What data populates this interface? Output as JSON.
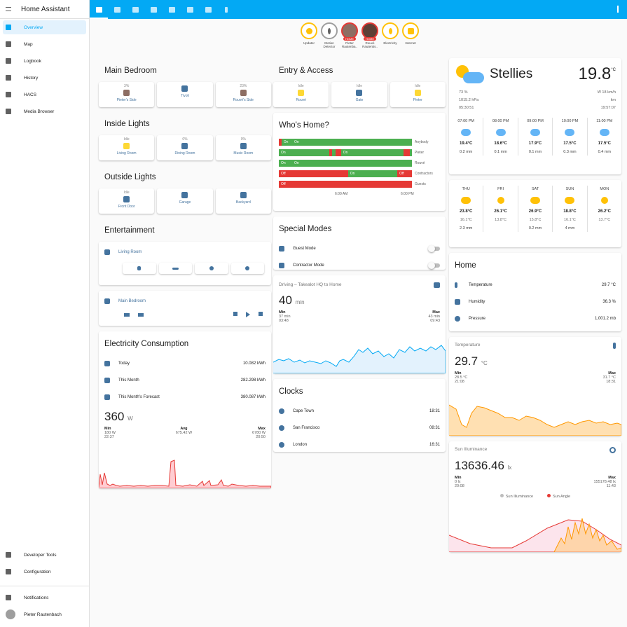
{
  "app_title": "Home Assistant",
  "sidebar": {
    "items": [
      {
        "label": "Overview"
      },
      {
        "label": "Map"
      },
      {
        "label": "Logbook"
      },
      {
        "label": "History"
      },
      {
        "label": "HACS"
      },
      {
        "label": "Media Browser"
      }
    ],
    "bottom": [
      {
        "label": "Developer Tools"
      },
      {
        "label": "Configuration"
      },
      {
        "label": "Notifications"
      },
      {
        "label": "Pieter Rautenbach"
      }
    ]
  },
  "badges": [
    {
      "label": "Updater"
    },
    {
      "label": "Motion Detector"
    },
    {
      "label": "Pieter Rautenba..",
      "state": "HOME"
    },
    {
      "label": "Rouvé Rautenbs..",
      "state": "HOME"
    },
    {
      "label": "Electricity"
    },
    {
      "label": "Internet"
    }
  ],
  "main_bedroom": {
    "title": "Main Bedroom",
    "buttons": [
      {
        "state": "3%",
        "name": "Pieter's Side"
      },
      {
        "state": "",
        "name": "Tivoli"
      },
      {
        "state": "23%",
        "name": "Rouvé's Side"
      }
    ]
  },
  "inside_lights": {
    "title": "Inside Lights",
    "buttons": [
      {
        "state": "Idle",
        "name": "Living Room"
      },
      {
        "state": "0%",
        "name": "Dining Room"
      },
      {
        "state": "0%",
        "name": "Music Room"
      }
    ]
  },
  "outside_lights": {
    "title": "Outside Lights",
    "buttons": [
      {
        "state": "Idle",
        "name": "Front Door"
      },
      {
        "state": "",
        "name": "Garage"
      },
      {
        "state": "",
        "name": "Backyard"
      }
    ]
  },
  "entertainment": {
    "title": "Entertainment",
    "living_room": "Living Room",
    "main_bedroom": "Main Bedroom"
  },
  "electricity": {
    "title": "Electricity Consumption",
    "rows": [
      {
        "label": "Today",
        "value": "10.082 kWh"
      },
      {
        "label": "This Month",
        "value": "282.298 kWh"
      },
      {
        "label": "This Month's Forecast",
        "value": "380.087 kWh"
      }
    ],
    "current": "360",
    "unit": "W",
    "min_label": "Min",
    "min": "180 W",
    "min_time": "22:37",
    "avg_label": "Avg",
    "avg": "675.42 W",
    "max_label": "Max",
    "max": "6780 W",
    "max_time": "20:50"
  },
  "entry": {
    "title": "Entry & Access",
    "buttons": [
      {
        "state": "Idle",
        "name": "Rouvé"
      },
      {
        "state": "Idle",
        "name": "Gate"
      },
      {
        "state": "Idle",
        "name": "Pieter"
      }
    ]
  },
  "whos_home": {
    "title": "Who's Home?",
    "rows": [
      {
        "name": "Anybody",
        "segs": [
          {
            "t": "",
            "w": 2,
            "c": "#e53935"
          },
          {
            "t": "On",
            "w": 8,
            "c": "#4caf50"
          },
          {
            "t": "On",
            "w": 90,
            "c": "#4caf50"
          }
        ]
      },
      {
        "name": "Pieter",
        "segs": [
          {
            "t": "On",
            "w": 38,
            "c": "#4caf50"
          },
          {
            "t": "",
            "w": 2,
            "c": "#e53935"
          },
          {
            "t": "",
            "w": 3,
            "c": "#4caf50"
          },
          {
            "t": "",
            "w": 4,
            "c": "#e53935"
          },
          {
            "t": "On",
            "w": 47,
            "c": "#4caf50"
          },
          {
            "t": "",
            "w": 5,
            "c": "#e53935"
          },
          {
            "t": "",
            "w": 1,
            "c": "#4caf50"
          }
        ]
      },
      {
        "name": "Rouvé",
        "segs": [
          {
            "t": "On",
            "w": 10,
            "c": "#4caf50"
          },
          {
            "t": "On",
            "w": 90,
            "c": "#4caf50"
          }
        ]
      },
      {
        "name": "Contractors",
        "segs": [
          {
            "t": "Off",
            "w": 52,
            "c": "#e53935"
          },
          {
            "t": "On",
            "w": 37,
            "c": "#4caf50"
          },
          {
            "t": "Off",
            "w": 11,
            "c": "#e53935"
          }
        ]
      },
      {
        "name": "Guests",
        "segs": [
          {
            "t": "Off",
            "w": 100,
            "c": "#e53935"
          }
        ]
      }
    ],
    "ticks": [
      "6:00 AM",
      "6:00 PM"
    ]
  },
  "special": {
    "title": "Special Modes",
    "rows": [
      {
        "label": "Guest Mode"
      },
      {
        "label": "Contractor Mode"
      }
    ]
  },
  "driving": {
    "title": "Driving – Takealot HQ to Home",
    "value": "40",
    "unit": "min",
    "min_label": "Min",
    "min": "37 min",
    "min_time": "03:48",
    "max_label": "Max",
    "max": "43 min",
    "max_time": "09:43"
  },
  "clocks": {
    "title": "Clocks",
    "rows": [
      {
        "label": "Cape Town",
        "value": "18:31"
      },
      {
        "label": "San Francisco",
        "value": "08:31"
      },
      {
        "label": "London",
        "value": "16:31"
      }
    ]
  },
  "weather": {
    "name": "Stellies",
    "temp": "19.8",
    "unit": "°C",
    "humidity": "73",
    "humidity_unit": "%",
    "pressure": "1015.2",
    "pressure_unit": "hPa",
    "sunrise": "05:30:51",
    "wind": "W 18",
    "wind_unit": "km/h",
    "vis_unit": "km",
    "sunset": "19:57:07",
    "hourly": [
      {
        "t": "07:00 PM",
        "temp": "19.4°C",
        "p": "0.2 mm"
      },
      {
        "t": "08:00 PM",
        "temp": "18.6°C",
        "p": "0.1 mm"
      },
      {
        "t": "09:00 PM",
        "temp": "17.9°C",
        "p": "0.1 mm"
      },
      {
        "t": "10:00 PM",
        "temp": "17.5°C",
        "p": "0.3 mm"
      },
      {
        "t": "11:00 PM",
        "temp": "17.5°C",
        "p": "0.4 mm"
      }
    ],
    "daily": [
      {
        "d": "THU",
        "hi": "23.8°C",
        "lo": "16.1°C",
        "p": "2.3 mm"
      },
      {
        "d": "FRI",
        "hi": "26.1°C",
        "lo": "13.8°C",
        "p": ""
      },
      {
        "d": "SAT",
        "hi": "26.9°C",
        "lo": "15.8°C",
        "p": "0.2 mm"
      },
      {
        "d": "SUN",
        "hi": "18.8°C",
        "lo": "16.1°C",
        "p": "4 mm"
      },
      {
        "d": "MON",
        "hi": "26.2°C",
        "lo": "13.7°C",
        "p": ""
      }
    ]
  },
  "home": {
    "title": "Home",
    "rows": [
      {
        "label": "Temperature",
        "value": "29.7 °C"
      },
      {
        "label": "Humidity",
        "value": "36.3 %"
      },
      {
        "label": "Pressure",
        "value": "1,001.2 mb"
      }
    ]
  },
  "temperature": {
    "title": "Temperature",
    "value": "29.7",
    "unit": "°C",
    "min_label": "Min",
    "min": "28.5 °C",
    "min_time": "21:08",
    "max_label": "Max",
    "max": "31.7 °C",
    "max_time": "18:31"
  },
  "sun": {
    "title": "Sun Illuminance",
    "value": "13636.46",
    "unit": "lx",
    "min_label": "Min",
    "min": "0 lx",
    "min_time": "20:08",
    "max_label": "Max",
    "max": "155178.48 lx",
    "max_time": "11:43",
    "legend": [
      "Sun Illuminance",
      "Sun Angle"
    ]
  }
}
